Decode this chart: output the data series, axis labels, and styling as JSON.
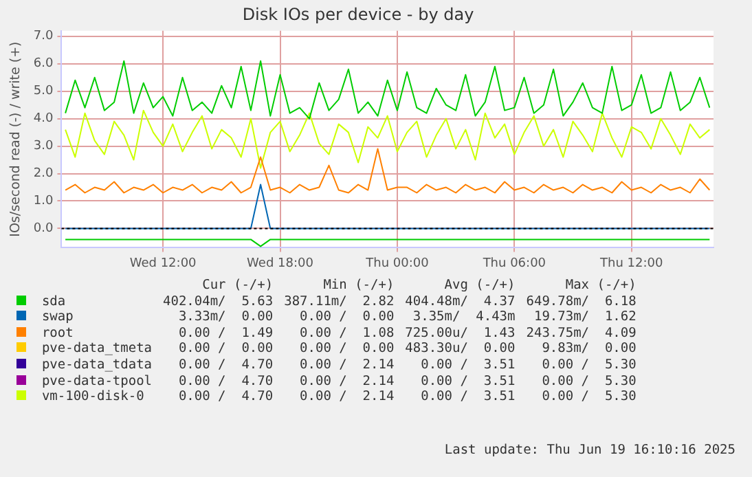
{
  "chart_data": {
    "type": "line",
    "title": "Disk IOs per device - by day",
    "ylabel": "IOs/second read (-) / write (+)",
    "x": [
      "2025-06-18T07:00",
      "2025-06-18T07:30",
      "2025-06-18T08:00",
      "2025-06-18T08:30",
      "2025-06-18T09:00",
      "2025-06-18T09:30",
      "2025-06-18T10:00",
      "2025-06-18T10:30",
      "2025-06-18T11:00",
      "2025-06-18T11:30",
      "2025-06-18T12:00",
      "2025-06-18T12:30",
      "2025-06-18T13:00",
      "2025-06-18T13:30",
      "2025-06-18T14:00",
      "2025-06-18T14:30",
      "2025-06-18T15:00",
      "2025-06-18T15:30",
      "2025-06-18T16:00",
      "2025-06-18T16:30",
      "2025-06-18T17:00",
      "2025-06-18T17:30",
      "2025-06-18T18:00",
      "2025-06-18T18:30",
      "2025-06-18T19:00",
      "2025-06-18T19:30",
      "2025-06-18T20:00",
      "2025-06-18T20:30",
      "2025-06-18T21:00",
      "2025-06-18T21:30",
      "2025-06-18T22:00",
      "2025-06-18T22:30",
      "2025-06-18T23:00",
      "2025-06-18T23:30",
      "2025-06-19T00:00",
      "2025-06-19T00:30",
      "2025-06-19T01:00",
      "2025-06-19T01:30",
      "2025-06-19T02:00",
      "2025-06-19T02:30",
      "2025-06-19T03:00",
      "2025-06-19T03:30",
      "2025-06-19T04:00",
      "2025-06-19T04:30",
      "2025-06-19T05:00",
      "2025-06-19T05:30",
      "2025-06-19T06:00",
      "2025-06-19T06:30",
      "2025-06-19T07:00",
      "2025-06-19T07:30",
      "2025-06-19T08:00",
      "2025-06-19T08:30",
      "2025-06-19T09:00",
      "2025-06-19T09:30",
      "2025-06-19T10:00",
      "2025-06-19T10:30",
      "2025-06-19T11:00",
      "2025-06-19T11:30",
      "2025-06-19T12:00",
      "2025-06-19T12:30",
      "2025-06-19T13:00",
      "2025-06-19T13:30",
      "2025-06-19T14:00",
      "2025-06-19T14:30",
      "2025-06-19T15:00",
      "2025-06-19T15:30",
      "2025-06-19T16:00"
    ],
    "xlim": [
      "2025-06-18T06:48",
      "2025-06-19T16:12"
    ],
    "xticks": [
      {
        "value": "2025-06-18T12:00",
        "label": "Wed 12:00"
      },
      {
        "value": "2025-06-18T18:00",
        "label": "Wed 18:00"
      },
      {
        "value": "2025-06-19T00:00",
        "label": "Thu 00:00"
      },
      {
        "value": "2025-06-19T06:00",
        "label": "Thu 06:00"
      },
      {
        "value": "2025-06-19T12:00",
        "label": "Thu 12:00"
      }
    ],
    "ylim": [
      -0.7,
      7.2
    ],
    "yticks": [
      {
        "value": 0,
        "label": "0.0"
      },
      {
        "value": 1,
        "label": "1.0"
      },
      {
        "value": 2,
        "label": "2.0"
      },
      {
        "value": 3,
        "label": "3.0"
      },
      {
        "value": 4,
        "label": "4.0"
      },
      {
        "value": 5,
        "label": "5.0"
      },
      {
        "value": 6,
        "label": "6.0"
      },
      {
        "value": 7,
        "label": "7.0"
      }
    ],
    "grid": true,
    "legend": "bottom",
    "marker": "none",
    "line_style": "solid",
    "ref_lines": [
      {
        "axis": "y",
        "value": 0,
        "color": "#000000",
        "line_style": "dotted"
      }
    ],
    "series": [
      {
        "name": "sda",
        "color": "#00cc00",
        "values": [
          4.2,
          5.4,
          4.4,
          5.5,
          4.3,
          4.6,
          6.1,
          4.2,
          5.3,
          4.4,
          4.8,
          4.1,
          5.5,
          4.3,
          4.6,
          4.2,
          5.2,
          4.4,
          5.9,
          4.3,
          6.1,
          4.1,
          5.6,
          4.2,
          4.4,
          4.0,
          5.3,
          4.3,
          4.7,
          5.8,
          4.2,
          4.6,
          4.1,
          5.4,
          4.3,
          5.7,
          4.4,
          4.2,
          5.1,
          4.5,
          4.3,
          5.6,
          4.1,
          4.6,
          5.9,
          4.3,
          4.4,
          5.5,
          4.2,
          4.5,
          5.8,
          4.1,
          4.6,
          5.3,
          4.4,
          4.2,
          5.9,
          4.3,
          4.5,
          5.6,
          4.2,
          4.4,
          5.7,
          4.3,
          4.6,
          5.5,
          4.4
        ]
      },
      {
        "color": "#00cc00",
        "values": [
          -0.4,
          -0.4,
          -0.4,
          -0.4,
          -0.4,
          -0.4,
          -0.4,
          -0.4,
          -0.4,
          -0.4,
          -0.4,
          -0.4,
          -0.4,
          -0.4,
          -0.4,
          -0.4,
          -0.4,
          -0.4,
          -0.4,
          -0.4,
          -0.65,
          -0.4,
          -0.4,
          -0.4,
          -0.4,
          -0.4,
          -0.4,
          -0.4,
          -0.4,
          -0.4,
          -0.4,
          -0.4,
          -0.4,
          -0.4,
          -0.4,
          -0.4,
          -0.4,
          -0.4,
          -0.4,
          -0.4,
          -0.4,
          -0.4,
          -0.4,
          -0.4,
          -0.4,
          -0.4,
          -0.4,
          -0.4,
          -0.4,
          -0.4,
          -0.4,
          -0.4,
          -0.4,
          -0.4,
          -0.4,
          -0.4,
          -0.4,
          -0.4,
          -0.4,
          -0.4,
          -0.4,
          -0.4,
          -0.4,
          -0.4,
          -0.4,
          -0.4,
          -0.4
        ]
      },
      {
        "name": "swap",
        "color": "#0066b3",
        "values": [
          0,
          0,
          0,
          0,
          0,
          0,
          0,
          0,
          0,
          0,
          0,
          0,
          0,
          0,
          0,
          0,
          0,
          0,
          0,
          0,
          1.6,
          0,
          0,
          0,
          0,
          0,
          0,
          0,
          0,
          0,
          0,
          0,
          0,
          0,
          0,
          0,
          0,
          0,
          0,
          0,
          0,
          0,
          0,
          0,
          0,
          0,
          0,
          0,
          0,
          0,
          0,
          0,
          0,
          0,
          0,
          0,
          0,
          0,
          0,
          0,
          0,
          0,
          0,
          0,
          0,
          0,
          0
        ]
      },
      {
        "name": "root",
        "color": "#ff8000",
        "values": [
          1.4,
          1.6,
          1.3,
          1.5,
          1.4,
          1.7,
          1.3,
          1.5,
          1.4,
          1.6,
          1.3,
          1.5,
          1.4,
          1.6,
          1.3,
          1.5,
          1.4,
          1.7,
          1.3,
          1.5,
          2.6,
          1.4,
          1.5,
          1.3,
          1.6,
          1.4,
          1.5,
          2.3,
          1.4,
          1.3,
          1.6,
          1.4,
          2.9,
          1.4,
          1.5,
          1.5,
          1.3,
          1.6,
          1.4,
          1.5,
          1.3,
          1.6,
          1.4,
          1.5,
          1.3,
          1.7,
          1.4,
          1.5,
          1.3,
          1.6,
          1.4,
          1.5,
          1.3,
          1.6,
          1.4,
          1.5,
          1.3,
          1.7,
          1.4,
          1.5,
          1.3,
          1.6,
          1.4,
          1.5,
          1.3,
          1.8,
          1.4
        ]
      },
      {
        "name": "pve-data_tmeta",
        "color": "#ffcc00",
        "values": [
          null,
          null,
          null,
          null,
          null,
          null,
          null,
          null,
          null,
          null,
          null,
          null,
          null,
          null,
          null,
          null,
          null,
          null,
          null,
          null,
          null,
          null,
          null,
          null,
          null,
          null,
          null,
          null,
          null,
          null,
          null,
          null,
          null,
          null,
          null,
          null,
          null,
          null,
          null,
          null,
          null,
          null,
          null,
          null,
          null,
          null,
          null,
          null,
          null,
          null,
          null,
          null,
          null,
          null,
          null,
          null,
          null,
          null,
          null,
          null,
          null,
          null,
          null,
          null,
          null,
          null,
          null
        ]
      },
      {
        "name": "pve-data_tdata",
        "color": "#330099",
        "values": [
          null,
          null,
          null,
          null,
          null,
          null,
          null,
          null,
          null,
          null,
          null,
          null,
          null,
          null,
          null,
          null,
          null,
          null,
          null,
          null,
          null,
          null,
          null,
          null,
          null,
          null,
          null,
          null,
          null,
          null,
          null,
          null,
          null,
          null,
          null,
          null,
          null,
          null,
          null,
          null,
          null,
          null,
          null,
          null,
          null,
          null,
          null,
          null,
          null,
          null,
          null,
          null,
          null,
          null,
          null,
          null,
          null,
          null,
          null,
          null,
          null,
          null,
          null,
          null,
          null,
          null,
          null
        ]
      },
      {
        "name": "pve-data-tpool",
        "color": "#990099",
        "values": [
          null,
          null,
          null,
          null,
          null,
          null,
          null,
          null,
          null,
          null,
          null,
          null,
          null,
          null,
          null,
          null,
          null,
          null,
          null,
          null,
          null,
          null,
          null,
          null,
          null,
          null,
          null,
          null,
          null,
          null,
          null,
          null,
          null,
          null,
          null,
          null,
          null,
          null,
          null,
          null,
          null,
          null,
          null,
          null,
          null,
          null,
          null,
          null,
          null,
          null,
          null,
          null,
          null,
          null,
          null,
          null,
          null,
          null,
          null,
          null,
          null,
          null,
          null,
          null,
          null,
          null,
          null
        ]
      },
      {
        "name": "vm-100-disk-0",
        "color": "#ccff00",
        "values": [
          3.6,
          2.6,
          4.2,
          3.2,
          2.7,
          3.9,
          3.4,
          2.5,
          4.3,
          3.5,
          3.0,
          3.8,
          2.8,
          3.5,
          4.1,
          2.9,
          3.6,
          3.3,
          2.6,
          4.0,
          2.2,
          3.5,
          3.9,
          2.8,
          3.4,
          4.2,
          3.1,
          2.7,
          3.8,
          3.5,
          2.4,
          3.7,
          3.3,
          4.1,
          2.8,
          3.5,
          3.9,
          2.6,
          3.4,
          4.0,
          2.9,
          3.6,
          2.5,
          4.2,
          3.3,
          3.8,
          2.7,
          3.5,
          4.1,
          3.0,
          3.6,
          2.6,
          3.9,
          3.4,
          2.8,
          4.2,
          3.3,
          2.6,
          3.7,
          3.5,
          2.9,
          4.0,
          3.4,
          2.7,
          3.8,
          3.3,
          3.6
        ]
      }
    ],
    "annotations": [
      "Cur (-/+)",
      "Min (-/+)",
      "Avg (-/+)",
      "Max (-/+)",
      "402.04m/  5.63",
      "387.11m/  2.82",
      "404.48m/  4.37",
      "649.78m/  6.18",
      "3.33m/  0.00",
      "0.00 /  0.00",
      "3.35m/  4.43m",
      "19.73m/  1.62",
      "0.00 /  1.49",
      "0.00 /  1.08",
      "725.00u/  1.43",
      "243.75m/  4.09",
      "0.00 /  0.00",
      "0.00 /  0.00",
      "483.30u/  0.00",
      "9.83m/  0.00",
      "0.00 /  4.70",
      "0.00 /  2.14",
      "0.00 /  3.51",
      "0.00 /  5.30",
      "0.00 /  4.70",
      "0.00 /  2.14",
      "0.00 /  3.51",
      "0.00 /  5.30",
      "0.00 /  4.70",
      "0.00 /  2.14",
      "0.00 /  3.51",
      "0.00 /  5.30",
      "Last update: Thu Jun 19 16:10:16 2025"
    ]
  }
}
